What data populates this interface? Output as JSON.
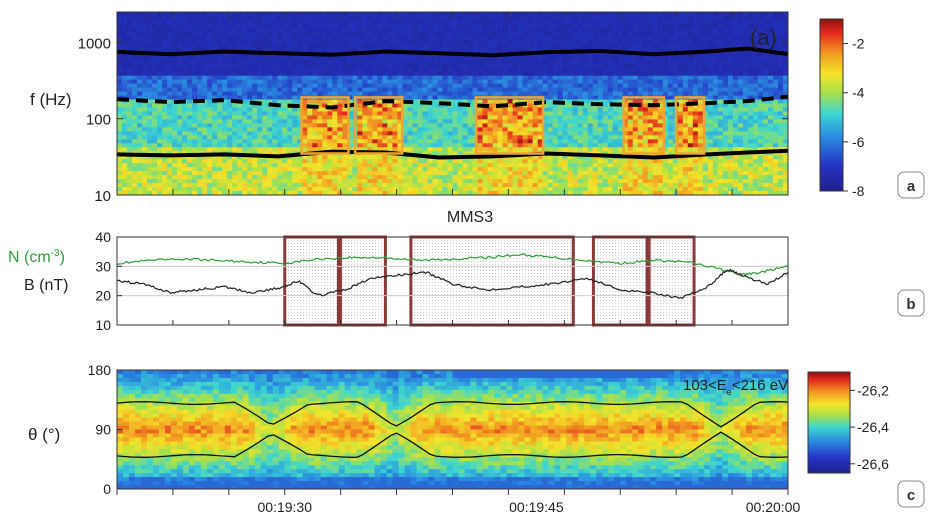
{
  "chart_data": [
    {
      "panel": "a",
      "type": "heatmap",
      "ylabel": "f (Hz)",
      "yscale": "log",
      "ylim": [
        10,
        2500
      ],
      "yticks": [
        {
          "label": "1000",
          "v": 1000
        },
        {
          "label": "100",
          "v": 100
        },
        {
          "label": "10",
          "v": 10
        }
      ],
      "annotation": "(a)",
      "colorbar": {
        "range": [
          -8,
          -1
        ],
        "ticks": [
          {
            "label": "-2",
            "v": -2
          },
          {
            "label": "-4",
            "v": -4
          },
          {
            "label": "-6",
            "v": -6
          },
          {
            "label": "-8",
            "v": -8
          }
        ]
      },
      "lines": {
        "upper": {
          "style": "solid",
          "x": [
            0,
            0.08,
            0.16,
            0.24,
            0.32,
            0.4,
            0.48,
            0.56,
            0.64,
            0.72,
            0.8,
            0.88,
            0.94,
            1.0
          ],
          "y": [
            750,
            700,
            760,
            720,
            690,
            760,
            720,
            680,
            740,
            770,
            700,
            760,
            830,
            700
          ]
        },
        "dashed": {
          "style": "dashed",
          "x": [
            0,
            0.08,
            0.16,
            0.24,
            0.32,
            0.4,
            0.48,
            0.56,
            0.64,
            0.72,
            0.8,
            0.88,
            0.94,
            1.0
          ],
          "y": [
            180,
            165,
            175,
            150,
            140,
            170,
            160,
            145,
            165,
            155,
            150,
            160,
            170,
            195
          ]
        },
        "lower": {
          "style": "solid",
          "x": [
            0,
            0.08,
            0.16,
            0.24,
            0.32,
            0.4,
            0.48,
            0.56,
            0.64,
            0.72,
            0.8,
            0.88,
            0.94,
            1.0
          ],
          "y": [
            34,
            33,
            34,
            32,
            37,
            36,
            31,
            32,
            35,
            33,
            31,
            34,
            36,
            38
          ]
        }
      },
      "highlight_boxes": [
        {
          "t": [
            0.275,
            0.345
          ],
          "f": [
            35,
            190
          ]
        },
        {
          "t": [
            0.355,
            0.425
          ],
          "f": [
            35,
            190
          ]
        },
        {
          "t": [
            0.535,
            0.635
          ],
          "f": [
            35,
            190
          ]
        },
        {
          "t": [
            0.755,
            0.815
          ],
          "f": [
            35,
            190
          ]
        },
        {
          "t": [
            0.833,
            0.875
          ],
          "f": [
            35,
            190
          ]
        }
      ],
      "badge": "a"
    },
    {
      "panel": "b",
      "type": "line",
      "title": "MMS3",
      "ylim": [
        10,
        40
      ],
      "yticks": [
        {
          "label": "40",
          "v": 40
        },
        {
          "label": "30",
          "v": 30
        },
        {
          "label": "20",
          "v": 20
        },
        {
          "label": "10",
          "v": 10
        }
      ],
      "ylabels": [
        {
          "text": "N (cm",
          "sup": "-3",
          "tail": ")",
          "color": "#2e9e3a"
        },
        {
          "text": "B (nT)",
          "color": "#222222"
        }
      ],
      "series": [
        {
          "color": "#2e9e3a",
          "x": [
            0,
            0.05,
            0.1,
            0.15,
            0.2,
            0.25,
            0.3,
            0.35,
            0.4,
            0.45,
            0.5,
            0.55,
            0.6,
            0.65,
            0.7,
            0.75,
            0.8,
            0.85,
            0.9,
            0.93,
            0.96,
            1.0
          ],
          "y": [
            31,
            32,
            32.5,
            32,
            31.5,
            31,
            32.5,
            33,
            33,
            32,
            32.5,
            33,
            34,
            33,
            32,
            31,
            32,
            31.5,
            29,
            27,
            28,
            30
          ]
        },
        {
          "color": "#222222",
          "x": [
            0,
            0.04,
            0.08,
            0.12,
            0.16,
            0.2,
            0.24,
            0.27,
            0.3,
            0.34,
            0.38,
            0.42,
            0.46,
            0.5,
            0.55,
            0.6,
            0.65,
            0.7,
            0.75,
            0.8,
            0.84,
            0.88,
            0.91,
            0.94,
            0.97,
            1.0
          ],
          "y": [
            25,
            24,
            21,
            22,
            23,
            21,
            22.5,
            25,
            20,
            22,
            26,
            27,
            28,
            24,
            22,
            23,
            24,
            26,
            22,
            21,
            19,
            23,
            29,
            26,
            24,
            28
          ]
        }
      ],
      "highlight_boxes": [
        [
          0.25,
          0.33
        ],
        [
          0.333,
          0.4
        ],
        [
          0.438,
          0.68
        ],
        [
          0.71,
          0.79
        ],
        [
          0.793,
          0.86
        ]
      ],
      "badge": "b"
    },
    {
      "panel": "c",
      "type": "heatmap",
      "ylabel": "θ (°)",
      "ylim": [
        0,
        180
      ],
      "yticks": [
        {
          "label": "180",
          "v": 180
        },
        {
          "label": "90",
          "v": 90
        },
        {
          "label": "0",
          "v": 0
        }
      ],
      "xticks": [
        {
          "label": "00:19:30",
          "v": 0.25
        },
        {
          "label": "00:19:45",
          "v": 0.625
        },
        {
          "label": "00:20:00",
          "v": 1.0
        }
      ],
      "xlim_seconds": [
        1155,
        1203
      ],
      "annotation": "103<E",
      "annotation_sub": "e",
      "annotation_tail": "<216 eV",
      "colorbar": {
        "range": [
          -26.65,
          -26.1
        ],
        "ticks": [
          {
            "label": "-26,2",
            "v": -26.2
          },
          {
            "label": "-26,4",
            "v": -26.4
          },
          {
            "label": "-26,6",
            "v": -26.6
          }
        ]
      },
      "badge": "c"
    }
  ]
}
